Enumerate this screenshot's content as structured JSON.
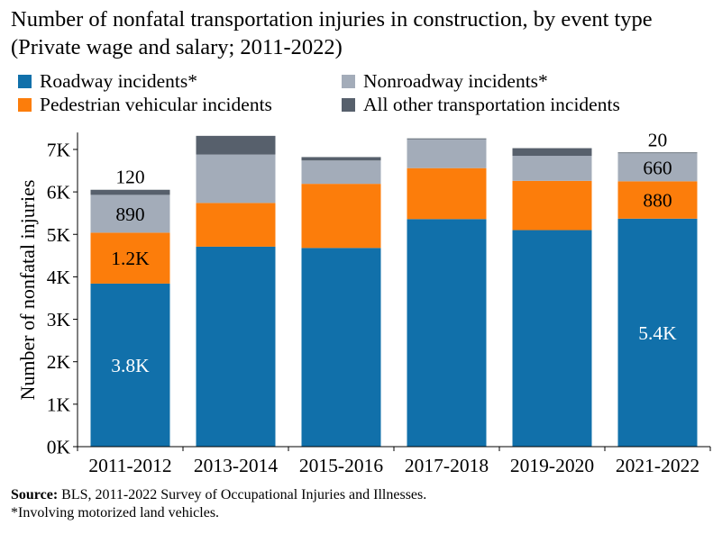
{
  "title": "Number of nonfatal transportation injuries in construction, by event type (Private wage and salary; 2011-2022)",
  "legend": [
    {
      "label": "Roadway incidents*",
      "color": "#1170aa"
    },
    {
      "label": "Nonroadway incidents*",
      "color": "#a3acb9"
    },
    {
      "label": "Pedestrian vehicular incidents",
      "color": "#fc7d0b"
    },
    {
      "label": "All other transportation incidents",
      "color": "#57606c"
    }
  ],
  "chart_data": {
    "type": "bar",
    "stacked": true,
    "ylabel": "Number of nonfatal injuries",
    "ylim": [
      0,
      7400
    ],
    "yticks": [
      {
        "value": 0,
        "label": "0K"
      },
      {
        "value": 1000,
        "label": "1K"
      },
      {
        "value": 2000,
        "label": "2K"
      },
      {
        "value": 3000,
        "label": "3K"
      },
      {
        "value": 4000,
        "label": "4K"
      },
      {
        "value": 5000,
        "label": "5K"
      },
      {
        "value": 6000,
        "label": "6K"
      },
      {
        "value": 7000,
        "label": "7K"
      }
    ],
    "categories": [
      "2011-2012",
      "2013-2014",
      "2015-2016",
      "2017-2018",
      "2019-2020",
      "2021-2022"
    ],
    "series": [
      {
        "name": "Roadway incidents*",
        "color": "#1170aa",
        "values": [
          3840,
          4710,
          4680,
          5360,
          5100,
          5370
        ]
      },
      {
        "name": "Pedestrian vehicular incidents",
        "color": "#fc7d0b",
        "values": [
          1200,
          1030,
          1510,
          1200,
          1160,
          880
        ]
      },
      {
        "name": "Nonroadway incidents*",
        "color": "#a3acb9",
        "values": [
          890,
          1140,
          550,
          680,
          590,
          660
        ]
      },
      {
        "name": "All other transportation incidents",
        "color": "#57606c",
        "values": [
          120,
          440,
          80,
          20,
          180,
          20
        ]
      }
    ],
    "data_labels": [
      {
        "category": 0,
        "series": 0,
        "text": "3.8K",
        "color": "#ffffff",
        "position": "inside"
      },
      {
        "category": 0,
        "series": 1,
        "text": "1.2K",
        "color": "#000000",
        "position": "inside"
      },
      {
        "category": 0,
        "series": 2,
        "text": "890",
        "color": "#000000",
        "position": "inside"
      },
      {
        "category": 0,
        "series": 3,
        "text": "120",
        "color": "#000000",
        "position": "above"
      },
      {
        "category": 5,
        "series": 0,
        "text": "5.4K",
        "color": "#ffffff",
        "position": "inside"
      },
      {
        "category": 5,
        "series": 1,
        "text": "880",
        "color": "#000000",
        "position": "inside"
      },
      {
        "category": 5,
        "series": 2,
        "text": "660",
        "color": "#000000",
        "position": "inside"
      },
      {
        "category": 5,
        "series": 3,
        "text": "20",
        "color": "#000000",
        "position": "above"
      }
    ]
  },
  "footer": {
    "source_label": "Source:",
    "source_text": " BLS, 2011-2022 Survey of Occupational Injuries and Illnesses.",
    "note": "*Involving motorized land vehicles."
  }
}
